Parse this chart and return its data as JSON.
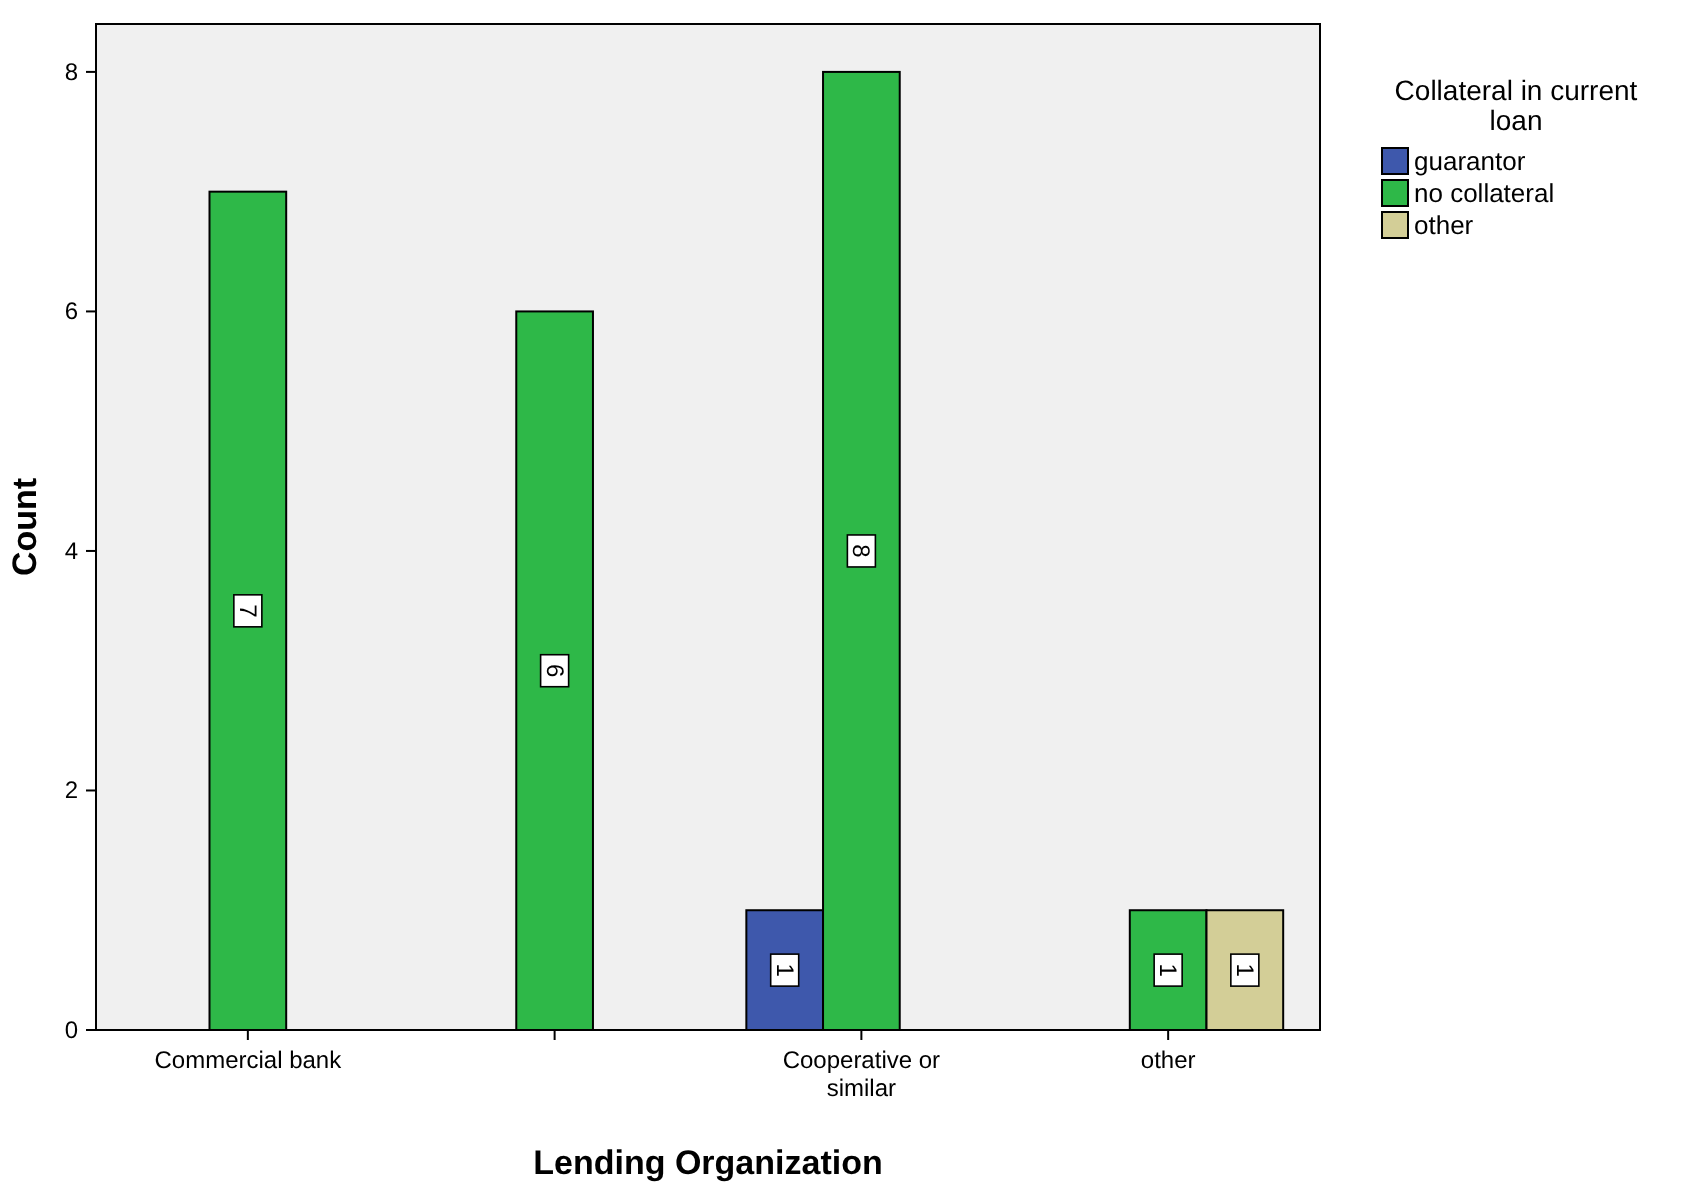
{
  "chart_data": {
    "type": "bar",
    "xlabel": "Lending Organization",
    "ylabel": "Count",
    "legend_title": "Collateral in current loan",
    "categories": [
      "Commercial bank",
      null,
      "Cooperative or similar",
      "other"
    ],
    "series": [
      {
        "name": "guarantor",
        "color": "#3e58ac",
        "values": [
          null,
          null,
          1,
          null
        ]
      },
      {
        "name": "no collateral",
        "color": "#2eb848",
        "values": [
          7,
          6,
          8,
          1
        ]
      },
      {
        "name": "other",
        "color": "#d3ce97",
        "values": [
          null,
          null,
          null,
          1
        ]
      }
    ],
    "ylim": [
      0,
      8.4
    ],
    "yticks": [
      0,
      2,
      4,
      6,
      8
    ],
    "grid": false,
    "legend": "top right",
    "data_labels": true
  }
}
